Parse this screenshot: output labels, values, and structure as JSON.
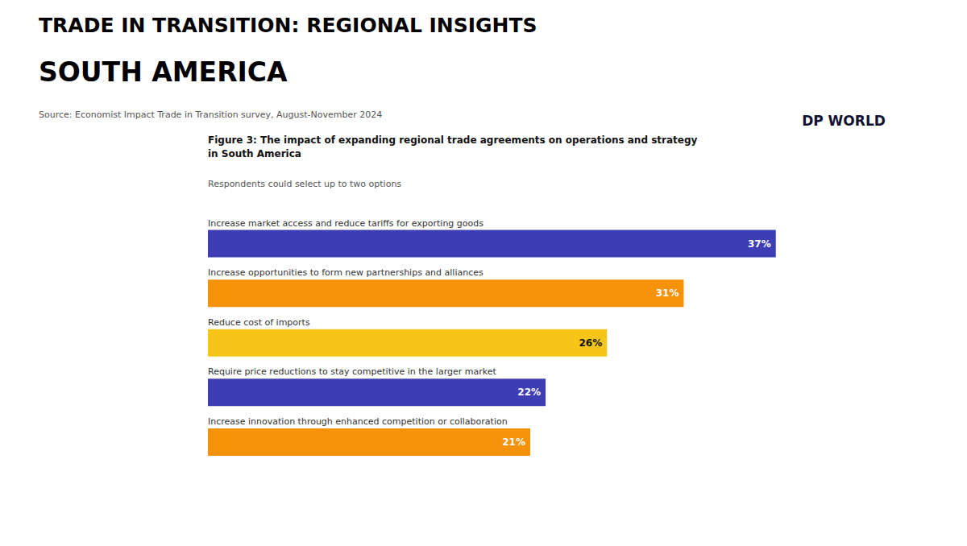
{
  "chart_data": {
    "type": "bar",
    "orientation": "horizontal",
    "title": "TRADE IN TRANSITION: REGIONAL INSIGHTS",
    "subtitle": "SOUTH AMERICA",
    "annotations": [
      "Source: Economist Impact Trade in Transition survey, August-November 2024",
      "Figure 3: The impact of expanding regional trade agreements on operations and strategy\nin South America",
      "Respondents could select up to two options",
      "DP WORLD"
    ],
    "categories": [
      "Increase market access and reduce tariffs for exporting goods",
      "Increase opportunities to form new partnerships and alliances",
      "Reduce cost of imports",
      "Require price reductions to stay competitive in the larger market",
      "Increase innovation through enhanced competition or collaboration"
    ],
    "values": [
      37,
      31,
      26,
      22,
      21
    ],
    "value_labels": [
      "37%",
      "31%",
      "26%",
      "22%",
      "21%"
    ],
    "colors": [
      "#3d3db4",
      "#f5920a",
      "#f5c518",
      "#3d3db4",
      "#f5920a"
    ],
    "xlim": [
      0,
      42
    ],
    "data_labels": true,
    "tick_labels": false,
    "grid": false
  }
}
